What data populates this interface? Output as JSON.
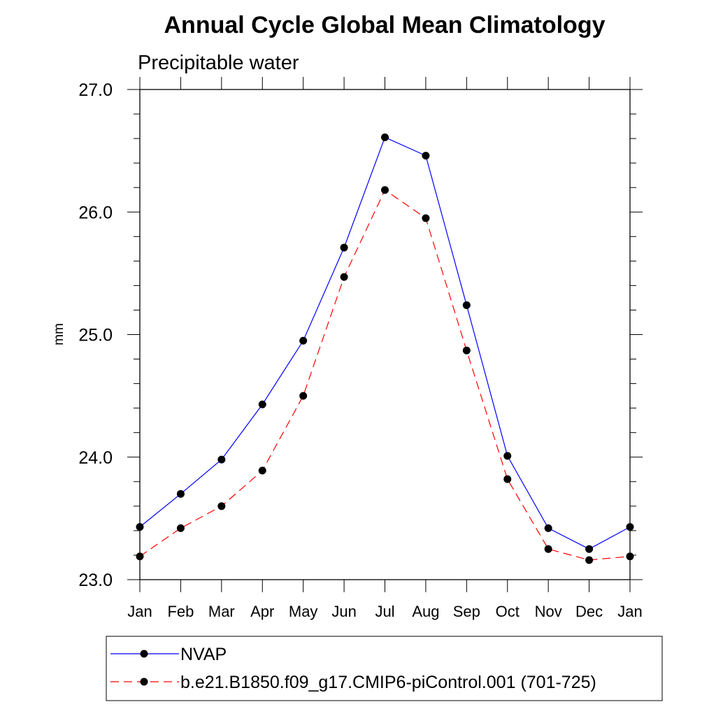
{
  "chart_data": {
    "type": "line",
    "title": "Annual Cycle Global Mean Climatology",
    "subtitle": "Precipitable water",
    "xlabel": "",
    "ylabel": "mm",
    "categories": [
      "Jan",
      "Feb",
      "Mar",
      "Apr",
      "May",
      "Jun",
      "Jul",
      "Aug",
      "Sep",
      "Oct",
      "Nov",
      "Dec",
      "Jan"
    ],
    "ylim": [
      23.0,
      27.0
    ],
    "yticks": [
      "23.0",
      "24.0",
      "25.0",
      "26.0",
      "27.0"
    ],
    "y_minor_step": 0.2,
    "grid": false,
    "legend_position": "bottom",
    "series": [
      {
        "name": "NVAP",
        "color": "#0000ff",
        "line_style": "solid",
        "marker": "filled-circle",
        "values": [
          23.43,
          23.7,
          23.98,
          24.43,
          24.95,
          25.71,
          26.61,
          26.46,
          25.24,
          24.01,
          23.42,
          23.25,
          23.43
        ]
      },
      {
        "name": "b.e21.B1850.f09_g17.CMIP6-piControl.001 (701-725)",
        "color": "#ff0000",
        "line_style": "dashed",
        "marker": "filled-circle",
        "values": [
          23.19,
          23.42,
          23.6,
          23.89,
          24.5,
          25.47,
          26.18,
          25.95,
          24.87,
          23.82,
          23.25,
          23.16,
          23.19
        ]
      }
    ]
  }
}
